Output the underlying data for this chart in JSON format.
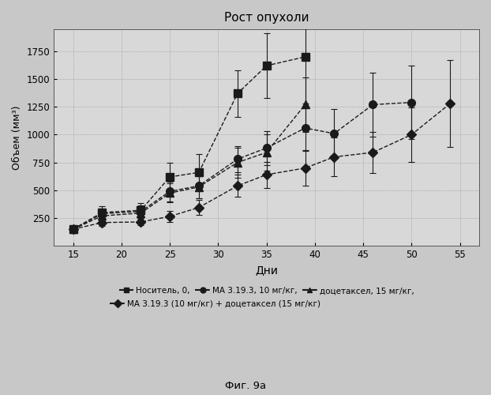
{
  "title": "Рост опухоли",
  "xlabel": "Дни",
  "ylabel": "Объем (мм³)",
  "xlim": [
    13,
    57
  ],
  "ylim": [
    0,
    1950
  ],
  "yticks": [
    250,
    500,
    750,
    1000,
    1250,
    1500,
    1750
  ],
  "xticks": [
    15,
    20,
    25,
    30,
    35,
    40,
    45,
    50,
    55
  ],
  "fig_caption": "Фиг. 9а",
  "series": [
    {
      "name": "Носитель, 0,",
      "x": [
        15,
        18,
        22,
        25,
        28,
        32,
        35,
        39
      ],
      "y": [
        150,
        300,
        320,
        620,
        660,
        1370,
        1620,
        1700
      ],
      "yerr": [
        20,
        55,
        65,
        130,
        165,
        210,
        290,
        420
      ],
      "marker": "s",
      "linestyle": "--",
      "color": "#1a1a1a",
      "markersize": 7
    },
    {
      "name": "МА 3.19.3, 10 мг/кг,",
      "x": [
        15,
        18,
        22,
        25,
        28,
        32,
        35,
        39,
        42,
        46,
        50
      ],
      "y": [
        150,
        290,
        310,
        490,
        540,
        780,
        880,
        1060,
        1010,
        1270,
        1290
      ],
      "yerr": [
        20,
        45,
        55,
        90,
        110,
        120,
        155,
        200,
        220,
        285,
        330
      ],
      "marker": "o",
      "linestyle": "--",
      "color": "#1a1a1a",
      "markersize": 7
    },
    {
      "name": "доцетаксел, 15 мг/кг,",
      "x": [
        15,
        18,
        22,
        25,
        28,
        32,
        35,
        39
      ],
      "y": [
        150,
        270,
        295,
        475,
        530,
        750,
        840,
        1270
      ],
      "yerr": [
        20,
        40,
        50,
        85,
        100,
        135,
        165,
        245
      ],
      "marker": "^",
      "linestyle": "--",
      "color": "#1a1a1a",
      "markersize": 7
    },
    {
      "name": "МА 3.19.3 (10 мг/кг) + доцетаксел (15 мг/кг)",
      "x": [
        15,
        18,
        22,
        25,
        28,
        32,
        35,
        39,
        42,
        46,
        50,
        54
      ],
      "y": [
        150,
        210,
        215,
        265,
        345,
        540,
        640,
        700,
        800,
        840,
        1000,
        1280
      ],
      "yerr": [
        20,
        28,
        32,
        48,
        68,
        98,
        118,
        155,
        175,
        185,
        245,
        390
      ],
      "marker": "D",
      "linestyle": "--",
      "color": "#1a1a1a",
      "markersize": 6
    }
  ],
  "fig_bg": "#c8c8c8",
  "plot_bg": "#d8d8d8",
  "legend_row1": "■ Носитель, 0,  ● МА 3.19.3, 10 мг/кг,  ▲ доцетаксел, 15 мг/кг,",
  "legend_row2": "◆ МА 3.19.3 (10 мг/кг) + доцетаксел (15 мг/кг)"
}
